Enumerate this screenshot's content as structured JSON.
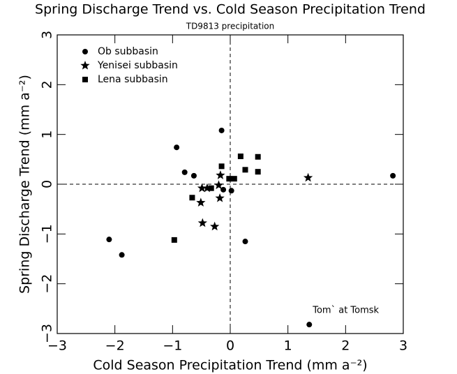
{
  "chart_data": {
    "type": "scatter",
    "title": "Spring Discharge Trend vs. Cold Season Precipitation Trend",
    "subtitle": "TD9813 precipitation",
    "xlabel": "Cold Season Precipitation Trend (mm a⁻²)",
    "ylabel": "Spring Discharge Trend (mm a⁻²)",
    "xlim": [
      -3,
      3
    ],
    "ylim": [
      -3,
      3
    ],
    "xticks": [
      {
        "value": -3,
        "label": "−3"
      },
      {
        "value": -2,
        "label": "−2"
      },
      {
        "value": -1,
        "label": "−1"
      },
      0,
      1,
      2,
      3
    ],
    "yticks": [
      {
        "value": -3,
        "label": "−3"
      },
      {
        "value": -2,
        "label": "−2"
      },
      {
        "value": -1,
        "label": "−1"
      },
      0,
      1,
      2,
      3
    ],
    "hline": 0,
    "vline": 0,
    "legend": "upper left",
    "annotations": [
      {
        "text": "Tom` at Tomsk",
        "x": 1.37,
        "y": -2.82
      }
    ],
    "series": [
      {
        "name": "Ob subbasin",
        "marker": "circle",
        "color": "#000000",
        "x": [
          -0.15,
          -0.93,
          -0.79,
          -0.63,
          -0.12,
          0.02,
          0.26,
          -2.1,
          -1.88,
          1.37,
          2.82
        ],
        "values": [
          1.08,
          0.74,
          0.24,
          0.17,
          -0.11,
          -0.13,
          -1.15,
          -1.11,
          -1.42,
          -2.82,
          0.17
        ]
      },
      {
        "name": "Yenisei subbasin",
        "marker": "star",
        "color": "#000000",
        "x": [
          -0.17,
          -0.49,
          -0.4,
          -0.51,
          -0.2,
          -0.18,
          -0.48,
          -0.27,
          1.35
        ],
        "values": [
          0.18,
          -0.08,
          -0.08,
          -0.37,
          -0.02,
          -0.28,
          -0.78,
          -0.85,
          0.13
        ]
      },
      {
        "name": "Lena subbasin",
        "marker": "square",
        "color": "#000000",
        "x": [
          -0.15,
          0.18,
          0.26,
          0.07,
          -0.02,
          0.48,
          0.48,
          -0.66,
          -0.33,
          -0.97
        ],
        "values": [
          0.36,
          0.56,
          0.29,
          0.11,
          0.11,
          0.55,
          0.25,
          -0.27,
          -0.08,
          -1.12
        ]
      }
    ]
  }
}
